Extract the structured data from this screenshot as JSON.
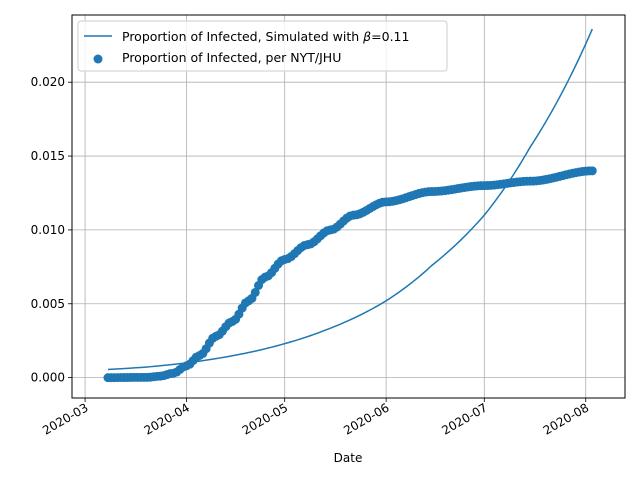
{
  "chart_data": {
    "type": "line+scatter",
    "xlabel": "Date",
    "ylabel": "",
    "xlim": [
      "2020-02-26",
      "2020-08-13"
    ],
    "ylim": [
      -0.00138,
      0.02455
    ],
    "x_ticks": [
      "2020-03",
      "2020-04",
      "2020-05",
      "2020-06",
      "2020-07",
      "2020-08"
    ],
    "y_ticks": [
      "0.000",
      "0.005",
      "0.010",
      "0.015",
      "0.020"
    ],
    "grid": true,
    "legend_position": "top-left",
    "legend": {
      "line_label_prefix": "Proportion of Infected, Simulated with ",
      "beta_symbol": "β",
      "line_label_suffix": "=0.11",
      "scatter_label": "Proportion of Infected, per NYT/JHU"
    },
    "colors": {
      "series": "#1f77b4",
      "grid": "#b0b0b0",
      "axis": "#000000"
    },
    "series": [
      {
        "name": "Proportion of Infected, Simulated with β=0.11",
        "type": "line",
        "points": [
          [
            "2020-03-08",
            0.00055
          ],
          [
            "2020-03-20",
            0.00072
          ],
          [
            "2020-04-01",
            0.001
          ],
          [
            "2020-04-15",
            0.00148
          ],
          [
            "2020-05-01",
            0.0023
          ],
          [
            "2020-05-15",
            0.00335
          ],
          [
            "2020-06-01",
            0.0052
          ],
          [
            "2020-06-15",
            0.0076
          ],
          [
            "2020-07-01",
            0.011
          ],
          [
            "2020-07-15",
            0.0156
          ],
          [
            "2020-08-03",
            0.0236
          ]
        ]
      },
      {
        "name": "Proportion of Infected, per NYT/JHU",
        "type": "scatter",
        "points": [
          [
            "2020-03-08",
            0.0
          ],
          [
            "2020-03-20",
            2e-05
          ],
          [
            "2020-03-24",
            0.0001
          ],
          [
            "2020-03-28",
            0.0003
          ],
          [
            "2020-04-01",
            0.0008
          ],
          [
            "2020-04-05",
            0.0015
          ],
          [
            "2020-04-10",
            0.0028
          ],
          [
            "2020-04-15",
            0.0038
          ],
          [
            "2020-04-20",
            0.0052
          ],
          [
            "2020-04-25",
            0.0068
          ],
          [
            "2020-05-01",
            0.008
          ],
          [
            "2020-05-08",
            0.009
          ],
          [
            "2020-05-15",
            0.01
          ],
          [
            "2020-05-22",
            0.011
          ],
          [
            "2020-06-01",
            0.0119
          ],
          [
            "2020-06-15",
            0.0126
          ],
          [
            "2020-07-01",
            0.013
          ],
          [
            "2020-07-15",
            0.0133
          ],
          [
            "2020-08-03",
            0.014
          ]
        ]
      }
    ]
  }
}
